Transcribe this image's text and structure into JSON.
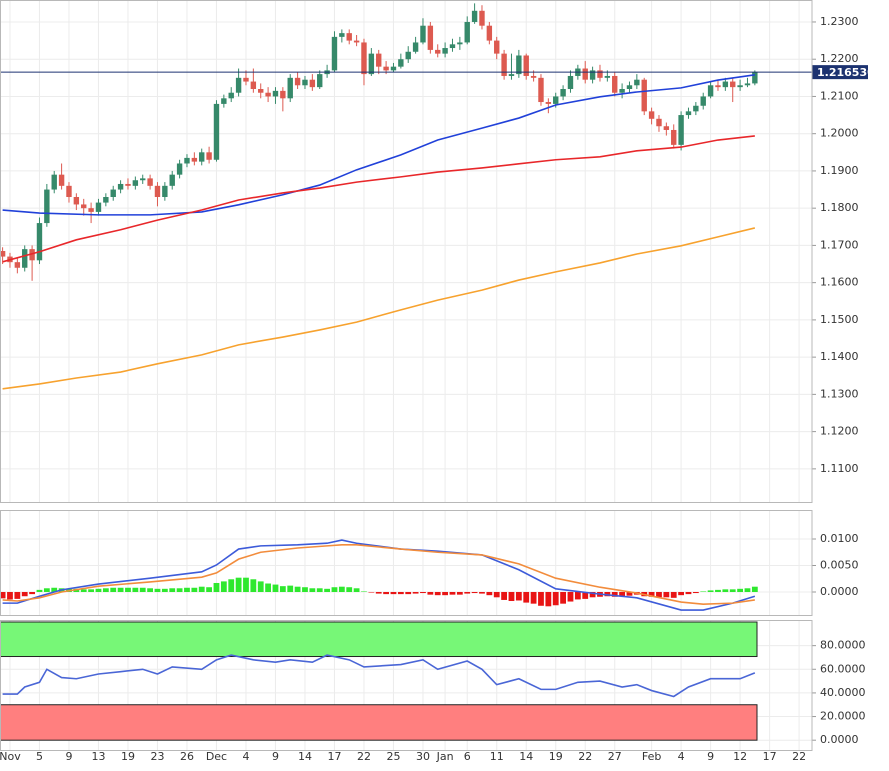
{
  "chart_data": [
    {
      "type": "candlestick",
      "categories": [
        null,
        "Nov",
        null,
        null,
        null,
        "5",
        null,
        null,
        null,
        "9",
        null,
        null,
        null,
        "13",
        null,
        null,
        null,
        "19",
        null,
        null,
        null,
        "23",
        null,
        null,
        null,
        "26",
        null,
        null,
        null,
        "Dec",
        null,
        null,
        null,
        "4",
        null,
        null,
        null,
        "9",
        null,
        null,
        null,
        "14",
        null,
        null,
        null,
        "17",
        null,
        null,
        null,
        "22",
        null,
        null,
        null,
        "25",
        null,
        null,
        null,
        "30",
        null,
        null,
        "Jan",
        null,
        null,
        "6",
        null,
        null,
        null,
        "11",
        null,
        null,
        null,
        "14",
        null,
        null,
        null,
        "19",
        null,
        null,
        null,
        "22",
        null,
        null,
        null,
        "27",
        null,
        null,
        null,
        null,
        "Feb",
        null,
        null,
        null,
        "4",
        null,
        null,
        null,
        "9",
        null,
        null,
        null,
        "12",
        null,
        null,
        null,
        "17",
        null,
        null,
        null,
        "22"
      ],
      "candles": {
        "up_color": "#36896a",
        "down_color": "#dd5a50",
        "open": [
          1.1685,
          1.167,
          1.1655,
          1.164,
          1.169,
          1.166,
          1.176,
          1.185,
          1.189,
          1.186,
          1.183,
          1.181,
          1.18,
          1.179,
          1.1815,
          1.183,
          1.185,
          1.1865,
          1.186,
          1.1875,
          1.188,
          1.186,
          1.183,
          1.186,
          1.189,
          1.192,
          1.1935,
          1.1925,
          1.195,
          1.193,
          1.208,
          1.2095,
          1.211,
          1.215,
          1.214,
          1.212,
          1.211,
          1.21,
          1.2115,
          1.2095,
          1.215,
          1.213,
          1.2145,
          1.2125,
          1.216,
          1.217,
          1.226,
          1.227,
          1.225,
          1.2245,
          1.216,
          1.2215,
          1.218,
          1.217,
          1.218,
          1.22,
          1.222,
          1.2245,
          1.229,
          1.2225,
          1.2215,
          1.223,
          1.224,
          1.2245,
          1.23,
          1.233,
          1.229,
          1.225,
          1.2215,
          1.2155,
          1.216,
          1.221,
          1.2155,
          1.215,
          1.2085,
          1.208,
          1.21,
          1.212,
          1.2155,
          1.2175,
          1.2145,
          1.217,
          1.215,
          1.2155,
          1.211,
          1.212,
          1.213,
          1.2145,
          1.206,
          1.204,
          1.202,
          1.201,
          1.197,
          1.205,
          1.206,
          1.2075,
          1.21,
          1.213,
          1.2125,
          1.214,
          1.2125,
          1.213,
          1.2135,
          null,
          null,
          null,
          null,
          null,
          null
        ],
        "high": [
          1.1695,
          1.168,
          1.1665,
          1.17,
          1.17,
          1.1775,
          1.1865,
          1.19,
          1.192,
          1.187,
          1.184,
          1.1825,
          1.1815,
          1.1825,
          1.184,
          1.186,
          1.1875,
          1.188,
          1.1885,
          1.189,
          1.189,
          1.187,
          1.187,
          1.19,
          1.193,
          1.1945,
          1.195,
          1.196,
          1.1965,
          1.209,
          1.2105,
          1.2125,
          1.2175,
          1.217,
          1.2175,
          1.2135,
          1.2125,
          1.2125,
          1.2125,
          1.216,
          1.2165,
          1.2155,
          1.216,
          1.217,
          1.2185,
          1.2275,
          1.228,
          1.228,
          1.2265,
          1.2255,
          1.223,
          1.2225,
          1.2195,
          1.219,
          1.2215,
          1.2235,
          1.226,
          1.231,
          1.23,
          1.224,
          1.2245,
          1.2255,
          1.226,
          1.2315,
          1.235,
          1.2345,
          1.23,
          1.226,
          1.2225,
          1.2215,
          1.2225,
          1.2215,
          1.217,
          1.216,
          1.2095,
          1.211,
          1.213,
          1.217,
          1.2185,
          1.2195,
          1.218,
          1.2185,
          1.217,
          1.2165,
          1.2135,
          1.214,
          1.216,
          1.215,
          1.207,
          1.205,
          1.203,
          1.2025,
          1.206,
          1.207,
          1.2085,
          1.211,
          1.214,
          1.2145,
          1.215,
          1.215,
          1.2145,
          1.215,
          1.217,
          null,
          null,
          null,
          null,
          null,
          null
        ],
        "low": [
          1.165,
          1.164,
          1.1625,
          1.163,
          1.1605,
          1.165,
          1.175,
          1.184,
          1.185,
          1.1815,
          1.1795,
          1.178,
          1.176,
          1.178,
          1.1805,
          1.182,
          1.184,
          1.185,
          1.185,
          1.1865,
          1.185,
          1.1805,
          1.182,
          1.185,
          1.188,
          1.191,
          1.1915,
          1.1915,
          1.192,
          1.1925,
          1.207,
          1.2085,
          1.21,
          1.213,
          1.211,
          1.2095,
          1.2085,
          1.208,
          1.206,
          1.2085,
          1.212,
          1.212,
          1.2115,
          1.212,
          1.215,
          1.2165,
          1.2245,
          1.224,
          1.2235,
          1.213,
          1.2155,
          1.216,
          1.216,
          1.2165,
          1.2175,
          1.219,
          1.2215,
          1.224,
          1.2215,
          1.2205,
          1.2205,
          1.222,
          1.2225,
          1.224,
          1.2295,
          1.228,
          1.224,
          1.22,
          1.2145,
          1.2145,
          1.215,
          1.2145,
          1.214,
          1.2075,
          1.2055,
          1.207,
          1.209,
          1.211,
          1.2145,
          1.2135,
          1.2135,
          1.214,
          1.214,
          1.21,
          1.2095,
          1.211,
          1.212,
          1.205,
          1.2025,
          1.2005,
          1.1995,
          1.196,
          1.1955,
          1.204,
          1.205,
          1.2065,
          1.2095,
          1.2115,
          1.2115,
          1.2085,
          1.2115,
          1.2125,
          1.213,
          null,
          null,
          null,
          null,
          null,
          null
        ],
        "close": [
          1.167,
          1.1655,
          1.164,
          1.169,
          1.166,
          1.176,
          1.185,
          1.189,
          1.186,
          1.183,
          1.181,
          1.18,
          1.179,
          1.1815,
          1.183,
          1.185,
          1.1865,
          1.186,
          1.1875,
          1.188,
          1.186,
          1.183,
          1.186,
          1.189,
          1.192,
          1.1935,
          1.1925,
          1.195,
          1.193,
          1.208,
          1.2095,
          1.211,
          1.215,
          1.214,
          1.212,
          1.211,
          1.21,
          1.2115,
          1.2095,
          1.215,
          1.213,
          1.2145,
          1.2125,
          1.216,
          1.217,
          1.226,
          1.227,
          1.225,
          1.2245,
          1.216,
          1.2215,
          1.218,
          1.217,
          1.218,
          1.22,
          1.222,
          1.2245,
          1.229,
          1.2225,
          1.2215,
          1.223,
          1.224,
          1.2245,
          1.23,
          1.233,
          1.229,
          1.225,
          1.2215,
          1.2155,
          1.216,
          1.221,
          1.2155,
          1.215,
          1.2085,
          1.208,
          1.21,
          1.212,
          1.2155,
          1.2175,
          1.2145,
          1.217,
          1.215,
          1.2155,
          1.211,
          1.212,
          1.213,
          1.2145,
          1.206,
          1.204,
          1.202,
          1.201,
          1.197,
          1.205,
          1.206,
          1.2075,
          1.21,
          1.213,
          1.2125,
          1.214,
          1.2125,
          1.213,
          1.2135,
          1.2165,
          null,
          null,
          null,
          null,
          null,
          null
        ]
      },
      "series": [
        {
          "color": "#2141d9",
          "x": [
            0,
            5,
            13,
            20,
            27,
            32,
            38,
            43,
            48,
            54,
            59,
            65,
            70,
            75,
            81,
            86,
            92,
            97,
            102
          ],
          "values": [
            1.1795,
            1.1787,
            1.1782,
            1.1782,
            1.179,
            1.1809,
            1.1836,
            1.1862,
            1.1903,
            1.1943,
            1.1983,
            1.2015,
            1.2042,
            1.2077,
            1.2099,
            1.2112,
            1.2123,
            1.2144,
            1.2158
          ]
        },
        {
          "color": "#e8272a",
          "x": [
            0,
            5,
            10,
            16,
            21,
            27,
            32,
            38,
            43,
            48,
            54,
            59,
            65,
            70,
            75,
            81,
            86,
            92,
            97,
            102
          ],
          "values": [
            1.1656,
            1.1683,
            1.1715,
            1.1742,
            1.1768,
            1.1795,
            1.1822,
            1.1841,
            1.1854,
            1.187,
            1.1884,
            1.1897,
            1.1908,
            1.1919,
            1.193,
            1.1938,
            1.1954,
            1.1964,
            1.1983,
            1.1994
          ]
        },
        {
          "color": "#f7a22e",
          "x": [
            0,
            5,
            10,
            16,
            21,
            27,
            32,
            38,
            43,
            48,
            54,
            59,
            65,
            70,
            75,
            81,
            86,
            92,
            97,
            102
          ],
          "values": [
            1.1315,
            1.1328,
            1.1344,
            1.136,
            1.1382,
            1.1406,
            1.1433,
            1.1454,
            1.1473,
            1.1494,
            1.1527,
            1.1553,
            1.158,
            1.1607,
            1.1629,
            1.1653,
            1.1677,
            1.1699,
            1.1723,
            1.1747
          ]
        }
      ],
      "last_price": {
        "value": 1.21653,
        "label": "1.216530",
        "color": "#1c3270"
      },
      "ylim": [
        1.1011,
        1.2359
      ],
      "yticks": [
        {
          "value": 1.23,
          "label": "1.2300"
        },
        {
          "value": 1.22,
          "label": "1.2200"
        },
        {
          "value": 1.21,
          "label": "1.2100"
        },
        {
          "value": 1.2,
          "label": "1.2000"
        },
        {
          "value": 1.19,
          "label": "1.1900"
        },
        {
          "value": 1.18,
          "label": "1.1800"
        },
        {
          "value": 1.17,
          "label": "1.1700"
        },
        {
          "value": 1.16,
          "label": "1.1600"
        },
        {
          "value": 1.15,
          "label": "1.1500"
        },
        {
          "value": 1.14,
          "label": "1.1400"
        },
        {
          "value": 1.13,
          "label": "1.1300"
        },
        {
          "value": 1.12,
          "label": "1.1200"
        },
        {
          "value": 1.11,
          "label": "1.1100"
        }
      ],
      "grid": true
    },
    {
      "type": "macd",
      "histogram": {
        "up_color": "#2ee82e",
        "down_color": "#e81414",
        "values": [
          -0.0012,
          -0.0014,
          -0.0013,
          -0.0008,
          -0.0004,
          0.0004,
          0.0007,
          0.0008,
          0.0007,
          0.0006,
          0.0006,
          0.0005,
          0.0005,
          0.0006,
          0.0007,
          0.0008,
          0.0008,
          0.0008,
          0.0008,
          0.0008,
          0.0007,
          0.0006,
          0.0006,
          0.0007,
          0.0007,
          0.0008,
          0.0008,
          0.001,
          0.0009,
          0.0017,
          0.002,
          0.0024,
          0.0027,
          0.0027,
          0.0024,
          0.002,
          0.0016,
          0.0014,
          0.0011,
          0.0012,
          0.001,
          0.0009,
          0.0007,
          0.0007,
          0.0006,
          0.0009,
          0.001,
          0.0009,
          0.0007,
          0.0001,
          -0.0001,
          -0.0003,
          -0.0004,
          -0.0004,
          -0.0004,
          -0.0004,
          -0.0003,
          -0.0002,
          -0.0005,
          -0.0006,
          -0.0006,
          -0.0005,
          -0.0005,
          -0.0003,
          -0.0002,
          -0.0003,
          -0.0006,
          -0.001,
          -0.0015,
          -0.0017,
          -0.0016,
          -0.002,
          -0.0022,
          -0.0026,
          -0.0027,
          -0.0025,
          -0.0022,
          -0.0018,
          -0.0014,
          -0.0013,
          -0.001,
          -0.0009,
          -0.0008,
          -0.0009,
          -0.0008,
          -0.0007,
          -0.0005,
          -0.0008,
          -0.0009,
          -0.001,
          -0.001,
          -0.0011,
          -0.0006,
          -0.0004,
          -0.0002,
          0.0001,
          0.0003,
          0.0004,
          0.0005,
          0.0005,
          0.0006,
          0.0007,
          0.001,
          null,
          null,
          null,
          null,
          null,
          null
        ]
      },
      "series": [
        {
          "color": "#3d5bd9",
          "x": [
            0,
            2,
            5,
            8,
            13,
            20,
            27,
            29,
            32,
            35,
            40,
            44,
            46,
            48,
            54,
            59,
            65,
            70,
            75,
            81,
            86,
            92,
            95,
            99,
            102
          ],
          "values": [
            -0.0021,
            -0.0021,
            -0.0008,
            0.0004,
            0.0015,
            0.0026,
            0.0038,
            0.0051,
            0.0081,
            0.0087,
            0.0089,
            0.0092,
            0.0098,
            0.0092,
            0.0081,
            0.0077,
            0.007,
            0.0042,
            0.0006,
            -0.0004,
            -0.0011,
            -0.0034,
            -0.0034,
            -0.0021,
            -0.0008
          ]
        },
        {
          "color": "#f28c3c",
          "x": [
            0,
            2,
            5,
            8,
            13,
            20,
            27,
            29,
            32,
            35,
            40,
            44,
            46,
            48,
            54,
            59,
            65,
            70,
            75,
            81,
            86,
            92,
            95,
            99,
            102
          ],
          "values": [
            -0.0015,
            -0.0017,
            -0.0011,
            0.0,
            0.0011,
            0.0019,
            0.0028,
            0.0036,
            0.0062,
            0.0075,
            0.0083,
            0.0087,
            0.0089,
            0.0089,
            0.0081,
            0.0075,
            0.007,
            0.0053,
            0.0026,
            0.0009,
            -0.0002,
            -0.0019,
            -0.0023,
            -0.0021,
            -0.0015
          ]
        }
      ],
      "ylim": [
        -0.00434,
        0.01547
      ],
      "yticks": [
        {
          "value": 0.01,
          "label": "0.0100"
        },
        {
          "value": 0.005,
          "label": "0.0050"
        },
        {
          "value": 0,
          "label": "0.0000"
        }
      ],
      "grid": true
    },
    {
      "type": "line",
      "zones": [
        {
          "from": 70.8,
          "to": 100,
          "color": "#77f777"
        },
        {
          "from": 0,
          "to": 30,
          "color": "#ff7f7f"
        }
      ],
      "series": [
        {
          "color": "#4a66d6",
          "x": [
            0,
            2,
            3,
            5,
            6,
            8,
            10,
            13,
            16,
            19,
            21,
            23,
            27,
            29,
            31,
            34,
            37,
            39,
            42,
            44,
            47,
            49,
            54,
            57,
            59,
            63,
            65,
            67,
            70,
            73,
            75,
            78,
            81,
            84,
            86,
            88,
            91,
            93,
            96,
            100,
            102
          ],
          "values": [
            39,
            39,
            45,
            49,
            60,
            53,
            52,
            56,
            58,
            60,
            56,
            62,
            60,
            68,
            72,
            68,
            66,
            68,
            66,
            72,
            68,
            62,
            64,
            68,
            60,
            67,
            60,
            47,
            52,
            43,
            43,
            49,
            50,
            45,
            47,
            42,
            37,
            45,
            52,
            52,
            57
          ]
        }
      ],
      "ylim": [
        -8.3,
        101.7
      ],
      "yticks": [
        {
          "value": 80,
          "label": "80.0000"
        },
        {
          "value": 60,
          "label": "60.0000"
        },
        {
          "value": 40,
          "label": "40.0000"
        },
        {
          "value": 20,
          "label": "20.0000"
        },
        {
          "value": 0,
          "label": "0.0000"
        }
      ],
      "grid": true
    }
  ]
}
